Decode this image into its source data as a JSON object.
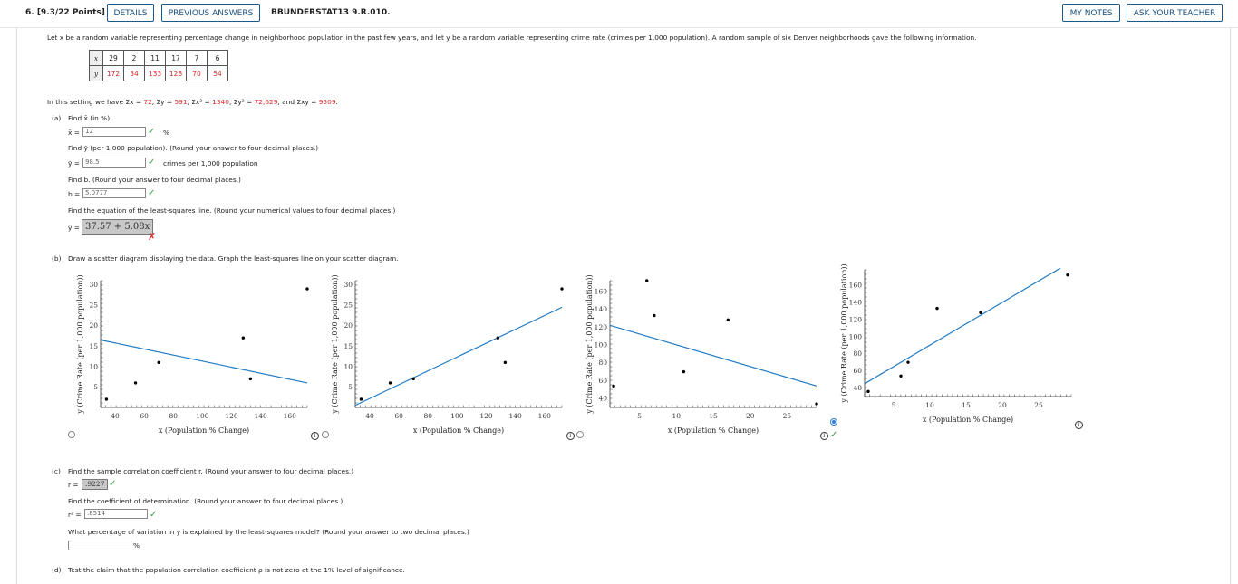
{
  "question": {
    "number": "6.  [9.3/22 Points]",
    "details_label": "DETAILS",
    "previous_answers_label": "PREVIOUS ANSWERS",
    "code": "BBUNDERSTAT13 9.R.010.",
    "my_notes_label": "MY NOTES",
    "ask_teacher_label": "ASK YOUR TEACHER"
  },
  "intro": "Let x be a random variable representing percentage change in neighborhood population in the past few years, and let y be a random variable representing crime rate (crimes per 1,000 population). A random sample of six Denver neighborhoods gave the following information.",
  "table": {
    "x_label": "x",
    "y_label": "y",
    "x_values": [
      "29",
      "2",
      "11",
      "17",
      "7",
      "6"
    ],
    "y_values": [
      "172",
      "34",
      "133",
      "128",
      "70",
      "54"
    ]
  },
  "sums": {
    "prefix": "In this setting we have ",
    "sum_x_label": "Σx = ",
    "sum_x": "72",
    "sum_y_label": ", Σy = ",
    "sum_y": "591",
    "sum_x2_label": ", Σx² = ",
    "sum_x2": "1340",
    "sum_y2_label": ", Σy² = ",
    "sum_y2": "72,629",
    "sum_xy_label": ", and Σxy = ",
    "sum_xy": "9509",
    "suffix": "."
  },
  "part_a": {
    "label": "(a)",
    "q1": "Find x̄ (in %).",
    "x_bar_label": "x̄ =",
    "x_bar_value": "12",
    "x_bar_unit": "%",
    "q2": "Find ȳ (per 1,000 population). (Round your answer to four decimal places.)",
    "y_bar_label": "ȳ =",
    "y_bar_value": "98.5",
    "y_bar_unit": "crimes per 1,000 population",
    "q3": "Find b. (Round your answer to four decimal places.)",
    "b_label": "b =",
    "b_value": "5.0777",
    "q4": "Find the equation of the least-squares line. (Round your numerical values to four decimal places.)",
    "yhat_label": "ŷ =",
    "yhat_value": "37.57 + 5.08x"
  },
  "part_b": {
    "label": "(b)",
    "question": "Draw a scatter diagram displaying the data. Graph the least-squares line on your scatter diagram."
  },
  "chart_data": [
    {
      "type": "scatter",
      "xlabel": "x (Population % Change)",
      "ylabel": "y (Crime Rate (per 1,000 population))",
      "xlim": [
        30,
        172
      ],
      "ylim": [
        0,
        31
      ],
      "x_ticks": [
        "40",
        "60",
        "80",
        "100",
        "120",
        "140",
        "160"
      ],
      "y_ticks": [
        "5",
        "10",
        "15",
        "20",
        "25",
        "30"
      ],
      "points": [
        [
          34,
          2
        ],
        [
          54,
          6
        ],
        [
          70,
          11
        ],
        [
          128,
          17
        ],
        [
          133,
          7
        ],
        [
          172,
          29
        ]
      ],
      "line": [
        [
          30,
          16.5
        ],
        [
          172,
          6
        ]
      ],
      "selected": false
    },
    {
      "type": "scatter",
      "xlabel": "x (Population % Change)",
      "ylabel": "y (Crime Rate (per 1,000 population))",
      "xlim": [
        30,
        172
      ],
      "ylim": [
        0,
        31
      ],
      "x_ticks": [
        "40",
        "60",
        "80",
        "100",
        "120",
        "140",
        "160"
      ],
      "y_ticks": [
        "5",
        "10",
        "15",
        "20",
        "25",
        "30"
      ],
      "points": [
        [
          34,
          2
        ],
        [
          54,
          6
        ],
        [
          70,
          7
        ],
        [
          128,
          17
        ],
        [
          133,
          11
        ],
        [
          172,
          29
        ]
      ],
      "line": [
        [
          30,
          0.5
        ],
        [
          172,
          24.5
        ]
      ],
      "selected": false
    },
    {
      "type": "scatter",
      "xlabel": "x (Population % Change)",
      "ylabel": "y (Crime Rate (per 1,000 population))",
      "xlim": [
        1,
        29
      ],
      "ylim": [
        30,
        172
      ],
      "x_ticks": [
        "5",
        "10",
        "15",
        "20",
        "25"
      ],
      "y_ticks": [
        "40",
        "60",
        "80",
        "100",
        "120",
        "140",
        "160"
      ],
      "points": [
        [
          1.5,
          54
        ],
        [
          6,
          172
        ],
        [
          7,
          133
        ],
        [
          11,
          70
        ],
        [
          17,
          128
        ],
        [
          29,
          34
        ]
      ],
      "line": [
        [
          1,
          122
        ],
        [
          29,
          54
        ]
      ],
      "selected": false
    },
    {
      "type": "scatter",
      "xlabel": "x (Population % Change)",
      "ylabel": "y (Crime Rate (per 1,000 population))",
      "xlim": [
        1,
        29.5
      ],
      "ylim": [
        30,
        178
      ],
      "x_ticks": [
        "5",
        "10",
        "15",
        "20",
        "25"
      ],
      "y_ticks": [
        "40",
        "60",
        "80",
        "100",
        "120",
        "140",
        "160"
      ],
      "points": [
        [
          1.5,
          36
        ],
        [
          6,
          54
        ],
        [
          7,
          70
        ],
        [
          11,
          133
        ],
        [
          17,
          128
        ],
        [
          29,
          172
        ]
      ],
      "line": [
        [
          1,
          45
        ],
        [
          28,
          180
        ]
      ],
      "selected": true
    }
  ],
  "part_c": {
    "label": "(c)",
    "q1": "Find the sample correlation coefficient r. (Round your answer to four decimal places.)",
    "r_label": "r =",
    "r_value": ".9227",
    "q2": "Find the coefficient of determination. (Round your answer to four decimal places.)",
    "r2_label": "r² =",
    "r2_value": ".8514",
    "q3": "What percentage of variation in y is explained by the least-squares model? (Round your answer to two decimal places.)",
    "pct_value": "",
    "pct_unit": "%"
  },
  "part_d": {
    "label": "(d)",
    "question": "Test the claim that the population correlation coefficient ρ is not zero at the 1% level of significance."
  },
  "icons": {
    "check": "✓",
    "cross": "✗",
    "info": "i"
  },
  "colors": {
    "correct": "#3aa14a",
    "incorrect": "#d42a2a",
    "line": "#1f7ac2",
    "link": "#1a4f7a"
  }
}
